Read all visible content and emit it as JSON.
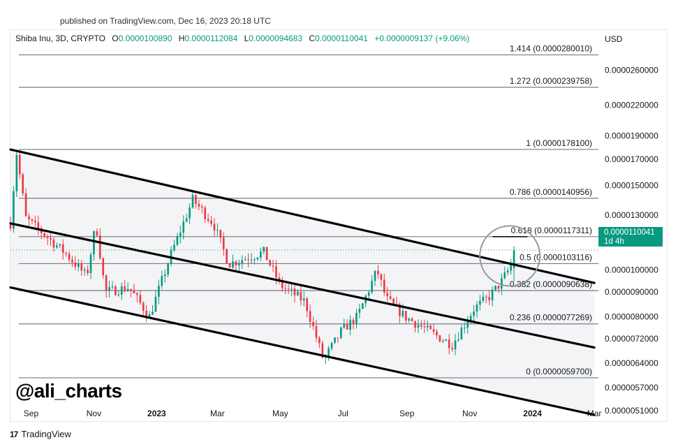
{
  "header": {
    "published": "published on TradingView.com, Dec 16, 2023 20:18 UTC"
  },
  "legend": {
    "symbol": "Shiba Inu, 3D, CRYPTO",
    "o_label": "O",
    "o_value": "0.0000100890",
    "h_label": "H",
    "h_value": "0.0000112084",
    "l_label": "L",
    "l_value": "0.0000094683",
    "c_label": "C",
    "c_value": "0.0000110041",
    "change": "+0.0000009137 (+9.06%)"
  },
  "currency": "USD",
  "price_tag": {
    "price": "0.0000110041",
    "countdown": "1d 4h"
  },
  "watermark": "@ali_charts",
  "footer": {
    "brand": "TradingView",
    "logo_glyph": "17"
  },
  "colors": {
    "up": "#089981",
    "down": "#f23645",
    "channel_fill": "#f3f4f6",
    "price_tag": "#089981"
  },
  "chart_data": {
    "type": "candlestick",
    "symbol": "Shiba Inu, 3D, CRYPTO",
    "x_ticks": [
      "Sep",
      "Nov",
      "2023",
      "Mar",
      "May",
      "Jul",
      "Sep",
      "Nov",
      "2024",
      "Mar"
    ],
    "x_tick_dates": [
      "2022-09-01",
      "2022-11-01",
      "2023-01-01",
      "2023-03-01",
      "2023-05-01",
      "2023-07-01",
      "2023-09-01",
      "2023-11-01",
      "2024-01-01",
      "2024-03-01"
    ],
    "x_range": [
      "2022-08-12",
      "2024-03-05"
    ],
    "y_axis": {
      "side": "right",
      "unit": "USD",
      "tick_labels": [
        "0.0000260000",
        "0.0000220000",
        "0.0000190000",
        "0.0000170000",
        "0.0000150000",
        "0.0000130000",
        "0.0000115000",
        "0.0000100000",
        "0.0000090000",
        "0.0000080000",
        "0.0000072000",
        "0.0000064000",
        "0.0000057000",
        "0.0000051000"
      ],
      "ticks": [
        2.6e-05,
        2.2e-05,
        1.9e-05,
        1.7e-05,
        1.5e-05,
        1.3e-05,
        1.15e-05,
        1e-05,
        9e-06,
        8e-06,
        7.2e-06,
        6.4e-06,
        5.7e-06,
        5.1e-06
      ],
      "range": [
        4.9e-06,
        2.93e-05
      ],
      "scale": "log"
    },
    "fib_levels": [
      {
        "ratio": 1.414,
        "price": 2.8001e-05,
        "label": "1.414 (0.0000280010)"
      },
      {
        "ratio": 1.272,
        "price": 2.39758e-05,
        "label": "1.272 (0.0000239758)"
      },
      {
        "ratio": 1,
        "price": 1.781e-05,
        "label": "1 (0.0000178100)"
      },
      {
        "ratio": 0.786,
        "price": 1.40956e-05,
        "label": "0.786 (0.0000140956)"
      },
      {
        "ratio": 0.618,
        "price": 1.17311e-05,
        "label": "0.618 (0.0000117311)"
      },
      {
        "ratio": 0.5,
        "price": 1.03116e-05,
        "label": "0.5 (0.0000103116)"
      },
      {
        "ratio": 0.382,
        "price": 9.0638e-06,
        "label": "0.382 (0.0000090638)"
      },
      {
        "ratio": 0.236,
        "price": 7.7269e-06,
        "label": "0.236 (0.0000077269)"
      },
      {
        "ratio": 0,
        "price": 5.97e-06,
        "label": "0 (0.0000059700)"
      }
    ],
    "channel_lines": [
      {
        "name": "upper",
        "start": [
          "2022-08-12",
          1.78e-05
        ],
        "end": [
          "2024-03-01",
          9.4e-06
        ]
      },
      {
        "name": "middle",
        "start": [
          "2022-08-12",
          1.25e-05
        ],
        "end": [
          "2024-03-01",
          6.9e-06
        ]
      },
      {
        "name": "lower",
        "start": [
          "2022-08-12",
          9.2e-06
        ],
        "end": [
          "2024-03-01",
          5e-06
        ]
      }
    ],
    "current_price": 1.10041e-05,
    "highlight_circle": {
      "center": [
        "2023-12-10",
        1.07e-05
      ],
      "note": "breakout area"
    },
    "candles_anchor_path": [
      [
        "2022-08-12",
        1.25e-05
      ],
      [
        "2022-08-18",
        1.75e-05
      ],
      [
        "2022-08-27",
        1.28e-05
      ],
      [
        "2022-09-15",
        1.18e-05
      ],
      [
        "2022-10-05",
        1.08e-05
      ],
      [
        "2022-10-25",
        9.7e-06
      ],
      [
        "2022-11-03",
        1.25e-05
      ],
      [
        "2022-11-12",
        9e-06
      ],
      [
        "2022-12-05",
        9.2e-06
      ],
      [
        "2022-12-25",
        8e-06
      ],
      [
        "2023-01-15",
        1.08e-05
      ],
      [
        "2023-02-05",
        1.4e-05
      ],
      [
        "2023-02-25",
        1.25e-05
      ],
      [
        "2023-03-12",
        1.03e-05
      ],
      [
        "2023-04-15",
        1.09e-05
      ],
      [
        "2023-05-01",
        9.3e-06
      ],
      [
        "2023-05-25",
        8.6e-06
      ],
      [
        "2023-06-12",
        6.5e-06
      ],
      [
        "2023-06-30",
        7.5e-06
      ],
      [
        "2023-07-15",
        8e-06
      ],
      [
        "2023-08-03",
        1e-05
      ],
      [
        "2023-08-12",
        8.7e-06
      ],
      [
        "2023-08-30",
        8e-06
      ],
      [
        "2023-09-25",
        7.4e-06
      ],
      [
        "2023-10-15",
        7e-06
      ],
      [
        "2023-11-05",
        8.3e-06
      ],
      [
        "2023-11-20",
        8.8e-06
      ],
      [
        "2023-12-01",
        9.4e-06
      ],
      [
        "2023-12-10",
        1.01e-05
      ],
      [
        "2023-12-16",
        1.10041e-05
      ]
    ]
  }
}
